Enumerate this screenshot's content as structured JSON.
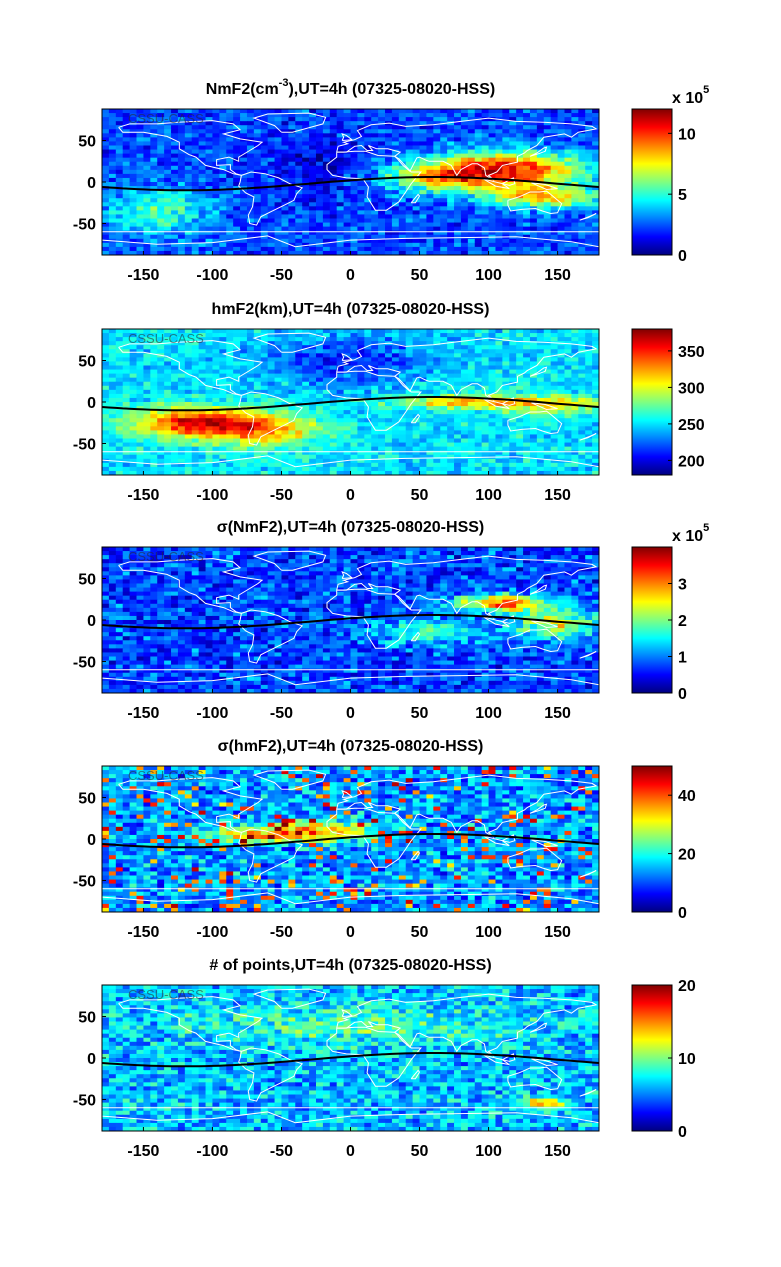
{
  "chart_data": [
    {
      "type": "heatmap",
      "title": "NmF2(cm-3),UT=4h (07325-08020-HSS)",
      "title_parts": {
        "pre": "NmF2(cm",
        "sup": "-3",
        "post": "),UT=4h (07325-08020-HSS)"
      },
      "xlabel": "",
      "ylabel": "",
      "xlim": [
        -180,
        180
      ],
      "ylim": [
        -88,
        88
      ],
      "xticks": [
        "-150",
        "-100",
        "-50",
        "0",
        "50",
        "100",
        "150"
      ],
      "yticks": [
        "50",
        "0",
        "-50"
      ],
      "colorbar": {
        "range": [
          0,
          12
        ],
        "ticks": [
          "10",
          "5",
          "0"
        ],
        "multiplier": "x 10",
        "exponent": "5"
      },
      "watermark": "CSSU-CASS",
      "dip_equator": true,
      "pattern": "nmf2"
    },
    {
      "type": "heatmap",
      "title": "hmF2(km),UT=4h (07325-08020-HSS)",
      "xlabel": "",
      "ylabel": "",
      "xlim": [
        -180,
        180
      ],
      "ylim": [
        -88,
        88
      ],
      "xticks": [
        "-150",
        "-100",
        "-50",
        "0",
        "50",
        "100",
        "150"
      ],
      "yticks": [
        "50",
        "0",
        "-50"
      ],
      "colorbar": {
        "range": [
          180,
          380
        ],
        "ticks": [
          "350",
          "300",
          "250",
          "200"
        ]
      },
      "watermark": "CSSU-CASS",
      "dip_equator": true,
      "pattern": "hmf2"
    },
    {
      "type": "heatmap",
      "title": "σ(NmF2),UT=4h (07325-08020-HSS)",
      "xlabel": "",
      "ylabel": "",
      "xlim": [
        -180,
        180
      ],
      "ylim": [
        -88,
        88
      ],
      "xticks": [
        "-150",
        "-100",
        "-50",
        "0",
        "50",
        "100",
        "150"
      ],
      "yticks": [
        "50",
        "0",
        "-50"
      ],
      "colorbar": {
        "range": [
          0,
          4
        ],
        "ticks": [
          "3",
          "2",
          "1",
          "0"
        ],
        "multiplier": "x 10",
        "exponent": "5"
      },
      "watermark": "CSSU-CASS",
      "dip_equator": true,
      "pattern": "signmf2"
    },
    {
      "type": "heatmap",
      "title": "σ(hmF2),UT=4h (07325-08020-HSS)",
      "xlabel": "",
      "ylabel": "",
      "xlim": [
        -180,
        180
      ],
      "ylim": [
        -88,
        88
      ],
      "xticks": [
        "-150",
        "-100",
        "-50",
        "0",
        "50",
        "100",
        "150"
      ],
      "yticks": [
        "50",
        "0",
        "-50"
      ],
      "colorbar": {
        "range": [
          0,
          50
        ],
        "ticks": [
          "40",
          "20",
          "0"
        ]
      },
      "watermark": "CSSU-CASS",
      "dip_equator": true,
      "pattern": "sighmf2"
    },
    {
      "type": "heatmap",
      "title": "# of points,UT=4h (07325-08020-HSS)",
      "xlabel": "",
      "ylabel": "",
      "xlim": [
        -180,
        180
      ],
      "ylim": [
        -88,
        88
      ],
      "xticks": [
        "-150",
        "-100",
        "-50",
        "0",
        "50",
        "100",
        "150"
      ],
      "yticks": [
        "50",
        "0",
        "-50"
      ],
      "colorbar": {
        "range": [
          0,
          20
        ],
        "ticks": [
          "20",
          "10",
          "0"
        ]
      },
      "watermark": "CSSU-CASS",
      "dip_equator": true,
      "pattern": "npts"
    }
  ]
}
